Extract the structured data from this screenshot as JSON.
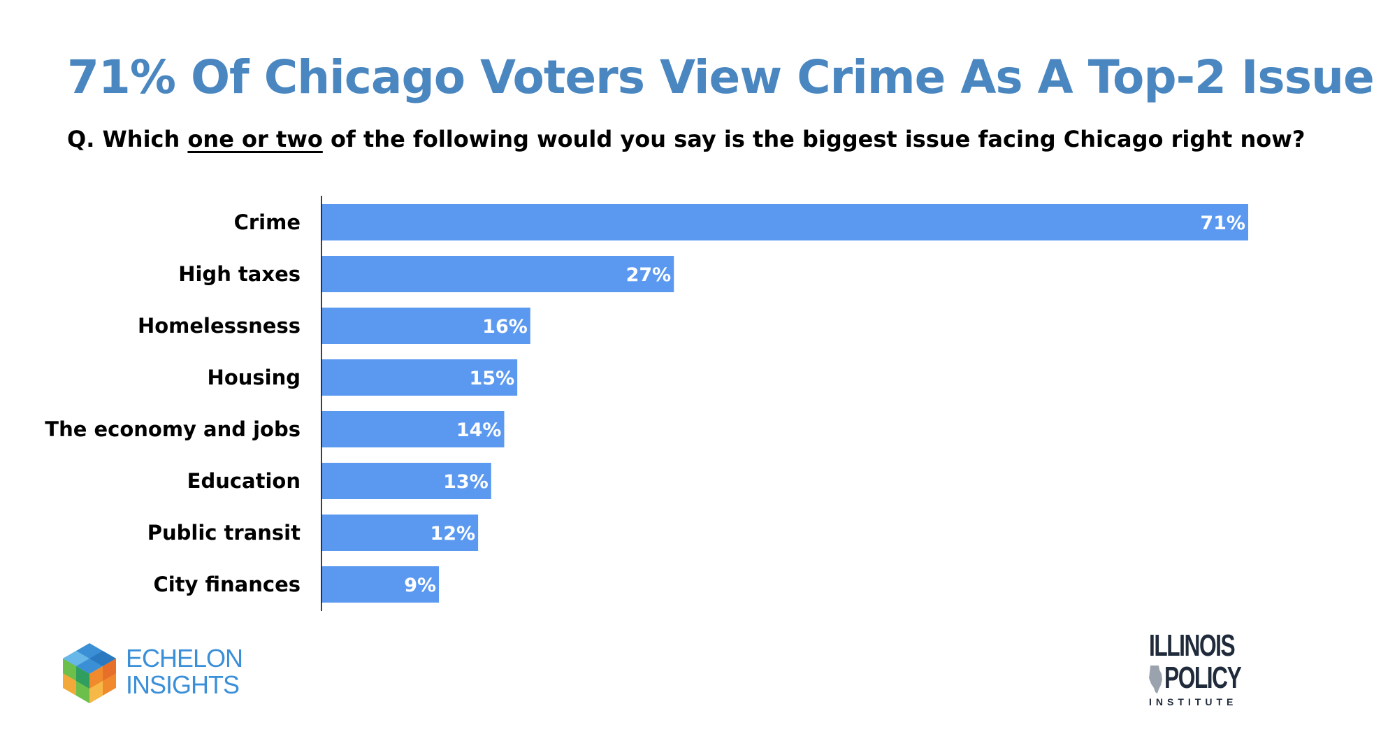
{
  "header": {
    "title": "71% Of Chicago Voters View Crime As A Top-2 Issue",
    "subtitle_before": "Q. Which ",
    "subtitle_emphasis": "one or two",
    "subtitle_after": " of the following would you say is the biggest issue facing Chicago right now?"
  },
  "colors": {
    "title": "#4a86c0",
    "bar": "#5b99f0",
    "bar_label": "#ffffff",
    "category_label": "#000000",
    "axis": "#000000"
  },
  "chart_data": {
    "type": "bar",
    "orientation": "horizontal",
    "categories": [
      "Crime",
      "High taxes",
      "Homelessness",
      "Housing",
      "The economy and jobs",
      "Education",
      "Public transit",
      "City finances"
    ],
    "values": [
      71,
      27,
      16,
      15,
      14,
      13,
      12,
      9
    ],
    "value_labels": [
      "71%",
      "27%",
      "16%",
      "15%",
      "14%",
      "13%",
      "12%",
      "9%"
    ],
    "unit": "%",
    "xlim": [
      0,
      71
    ],
    "grid": false,
    "legend": "none"
  },
  "logos": {
    "echelon": {
      "line1": "ECHELON",
      "line2": "INSIGHTS",
      "icon": "echelon-cube-icon",
      "color": "#3a8fd8"
    },
    "ipi": {
      "line1": "ILLINOIS",
      "line2": "POLICY",
      "line3": "INSTITUTE",
      "icon": "illinois-state-icon"
    }
  }
}
